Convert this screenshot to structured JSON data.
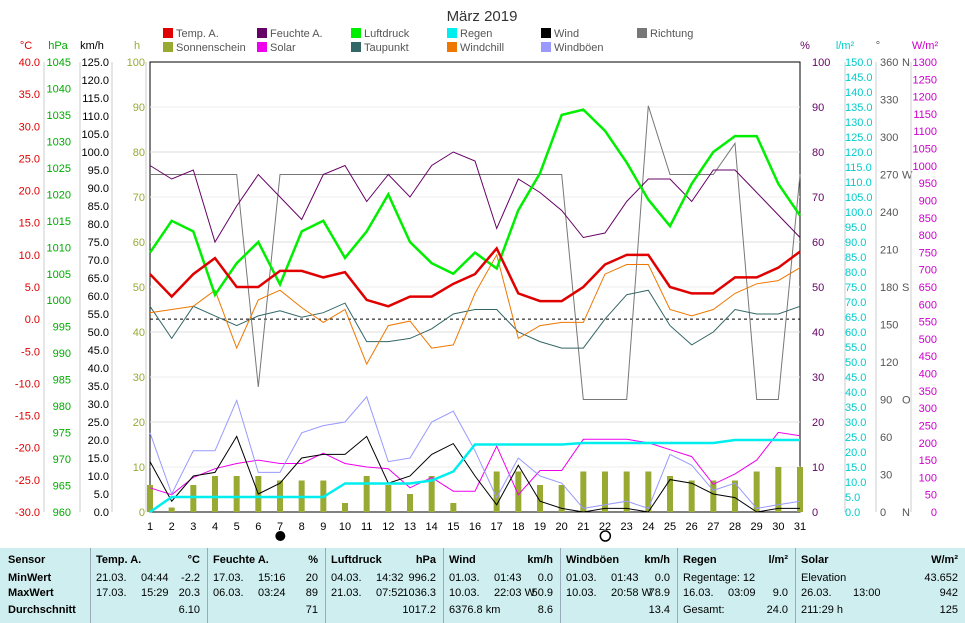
{
  "title": "März 2019",
  "legend": [
    {
      "label": "Temp. A.",
      "color": "#e00000"
    },
    {
      "label": "Feuchte A.",
      "color": "#660066"
    },
    {
      "label": "Luftdruck",
      "color": "#00ee00"
    },
    {
      "label": "Regen",
      "color": "#00eeee"
    },
    {
      "label": "Wind",
      "color": "#000000"
    },
    {
      "label": "Richtung",
      "color": "#777777"
    },
    {
      "label": "Sonnenschein",
      "color": "#99aa33"
    },
    {
      "label": "Solar",
      "color": "#ee00ee"
    },
    {
      "label": "Taupunkt",
      "color": "#336666"
    },
    {
      "label": "Windchill",
      "color": "#ee7700"
    },
    {
      "label": "Windböen",
      "color": "#9999ff"
    }
  ],
  "axes": {
    "temp": {
      "unit": "°C",
      "ticks": [
        "40.0",
        "35.0",
        "30.0",
        "25.0",
        "20.0",
        "15.0",
        "10.0",
        "5.0",
        "0.0",
        "-5.0",
        "-10.0",
        "-15.0",
        "-20.0",
        "-25.0",
        "-30.0"
      ],
      "color": "#e00000"
    },
    "press": {
      "unit": "hPa",
      "ticks": [
        "1045",
        "1040",
        "1035",
        "1030",
        "1025",
        "1020",
        "1015",
        "1010",
        "1005",
        "1000",
        "995",
        "990",
        "985",
        "980",
        "975",
        "970",
        "965",
        "960"
      ],
      "color": "#00aa00"
    },
    "wind": {
      "unit": "km/h",
      "ticks": [
        "125.0",
        "120.0",
        "115.0",
        "110.0",
        "105.0",
        "100.0",
        "95.0",
        "90.0",
        "85.0",
        "80.0",
        "75.0",
        "70.0",
        "65.0",
        "60.0",
        "55.0",
        "50.0",
        "45.0",
        "40.0",
        "35.0",
        "30.0",
        "25.0",
        "20.0",
        "15.0",
        "10.0",
        "5.0",
        "0.0"
      ],
      "color": "#000000"
    },
    "sun": {
      "unit": "h",
      "ticks": [
        "100",
        "90",
        "80",
        "70",
        "60",
        "50",
        "40",
        "30",
        "20",
        "10",
        "0"
      ],
      "color": "#99aa33"
    },
    "hum": {
      "unit": "%",
      "ticks": [
        "100",
        "90",
        "80",
        "70",
        "60",
        "50",
        "40",
        "30",
        "20",
        "10",
        "0"
      ],
      "color": "#660066"
    },
    "rain": {
      "unit": "l/m²",
      "ticks": [
        "150.0",
        "145.0",
        "140.0",
        "135.0",
        "130.0",
        "125.0",
        "120.0",
        "115.0",
        "110.0",
        "105.0",
        "100.0",
        "95.0",
        "90.0",
        "85.0",
        "80.0",
        "75.0",
        "70.0",
        "65.0",
        "60.0",
        "55.0",
        "50.0",
        "45.0",
        "40.0",
        "35.0",
        "30.0",
        "25.0",
        "20.0",
        "15.0",
        "10.0",
        "5.0",
        "0.0"
      ],
      "color": "#00cccc"
    },
    "dir": {
      "unit": "°",
      "ticks": [
        "360",
        "330",
        "300",
        "270",
        "240",
        "210",
        "180",
        "150",
        "120",
        "90",
        "60",
        "30",
        "0"
      ],
      "labels": {
        "360": "N",
        "270": "W",
        "180": "S",
        "90": "O",
        "0": "N"
      },
      "color": "#555555"
    },
    "solar": {
      "unit": "W/m²",
      "ticks": [
        "1300",
        "1250",
        "1200",
        "1150",
        "1100",
        "1050",
        "1000",
        "950",
        "900",
        "850",
        "800",
        "750",
        "700",
        "650",
        "600",
        "550",
        "500",
        "450",
        "400",
        "350",
        "300",
        "250",
        "200",
        "150",
        "100",
        "50",
        "0"
      ],
      "color": "#cc00cc"
    }
  },
  "chart_data": {
    "type": "line",
    "x": [
      1,
      2,
      3,
      4,
      5,
      6,
      7,
      8,
      9,
      10,
      11,
      12,
      13,
      14,
      15,
      16,
      17,
      18,
      19,
      20,
      21,
      22,
      23,
      24,
      25,
      26,
      27,
      28,
      29,
      30,
      31
    ],
    "ylim": {
      "temp": [
        -30,
        40
      ],
      "press": [
        960,
        1045
      ],
      "wind": [
        0,
        125
      ],
      "hum": [
        0,
        100
      ],
      "rain": [
        0,
        150
      ],
      "dir": [
        0,
        360
      ],
      "solar": [
        0,
        1300
      ],
      "sun": [
        0,
        100
      ]
    },
    "series": [
      {
        "name": "Temp. A.",
        "axis": "temp",
        "values": [
          7.0,
          3.5,
          7.0,
          9.5,
          5.0,
          5.0,
          7.5,
          7.5,
          6.5,
          7.3,
          3.0,
          2.0,
          3.5,
          3.5,
          5.5,
          7.0,
          11.0,
          4.0,
          2.8,
          2.8,
          5.0,
          8.5,
          10.0,
          10.0,
          5.0,
          4.0,
          4.0,
          6.5,
          6.5,
          8.0,
          10.5
        ]
      },
      {
        "name": "Feuchte A.",
        "axis": "hum",
        "values": [
          77,
          74,
          76,
          60,
          68,
          75,
          70,
          65,
          75,
          77,
          69,
          75,
          70,
          77,
          80,
          78,
          63,
          74,
          71,
          67,
          61,
          62,
          69,
          74,
          74,
          69,
          76,
          76,
          71,
          66,
          61
        ]
      },
      {
        "name": "Luftdruck",
        "axis": "press",
        "values": [
          1009,
          1015,
          1013,
          1001,
          1007,
          1011,
          1003,
          1013,
          1015,
          1008,
          1013,
          1020,
          1011,
          1007,
          1005,
          1009,
          1006,
          1017,
          1024,
          1035,
          1036,
          1032,
          1026,
          1019,
          1014,
          1022,
          1028,
          1031,
          1031,
          1022,
          1016
        ]
      },
      {
        "name": "Taupunkt",
        "axis": "temp",
        "values": [
          2.0,
          -3.0,
          2.0,
          0.5,
          -1.0,
          0.5,
          1.3,
          0.3,
          1.0,
          2.5,
          -3.5,
          -3.5,
          -3.0,
          -1.5,
          0.8,
          1.5,
          1.5,
          -2.0,
          -3.5,
          -4.5,
          -4.5,
          0.0,
          3.8,
          4.5,
          -1.0,
          -4.0,
          -2.0,
          1.5,
          0.8,
          0.8,
          2.0
        ]
      },
      {
        "name": "Windchill",
        "axis": "temp",
        "values": [
          1.0,
          1.5,
          2.0,
          4.5,
          -4.5,
          3.0,
          4.5,
          1.8,
          -0.5,
          1.5,
          -7.0,
          -1.0,
          -0.3,
          -4.5,
          -4.0,
          4.0,
          10.0,
          -3.0,
          -1.0,
          -0.5,
          -0.5,
          7.0,
          8.5,
          8.5,
          1.5,
          0.5,
          1.5,
          4.0,
          5.5,
          6.0,
          8.0
        ]
      },
      {
        "name": "Wind",
        "axis": "wind",
        "values": [
          14,
          3,
          10,
          11,
          21,
          5,
          8,
          15,
          16,
          16,
          21,
          8,
          10,
          16,
          19,
          10,
          2,
          13,
          3,
          1,
          0,
          1,
          1,
          0,
          9,
          8,
          5,
          4,
          0,
          1,
          1
        ]
      },
      {
        "name": "Windböen",
        "axis": "wind",
        "values": [
          22,
          5,
          17,
          17,
          31,
          11,
          11,
          22,
          24,
          25,
          32,
          14,
          15,
          25,
          28,
          17,
          4,
          15,
          10,
          8,
          1,
          2,
          3,
          1,
          16,
          13,
          6,
          8,
          1,
          2,
          3
        ]
      },
      {
        "name": "Richtung",
        "axis": "dir",
        "values": [
          270,
          270,
          270,
          270,
          270,
          100,
          270,
          270,
          270,
          270,
          270,
          270,
          270,
          270,
          270,
          270,
          270,
          270,
          270,
          270,
          90,
          90,
          90,
          325,
          270,
          270,
          270,
          295,
          90,
          90,
          270
        ]
      },
      {
        "name": "Solar",
        "axis": "solar",
        "values": [
          70,
          50,
          100,
          125,
          140,
          150,
          140,
          140,
          170,
          140,
          130,
          125,
          70,
          100,
          60,
          60,
          190,
          50,
          120,
          120,
          210,
          210,
          210,
          200,
          180,
          160,
          80,
          110,
          150,
          230,
          220
        ]
      },
      {
        "name": "Regen",
        "axis": "rain",
        "values": [
          0,
          5,
          5,
          5,
          5,
          5,
          5,
          5,
          5,
          9.5,
          9.5,
          9.5,
          9.5,
          10.5,
          13.5,
          22.5,
          22.5,
          22.5,
          22.5,
          22.5,
          23,
          23,
          23,
          23,
          23,
          23,
          23,
          24,
          24,
          24,
          24
        ]
      },
      {
        "name": "Sonnenschein",
        "axis": "sun",
        "values": [
          6,
          1,
          6,
          8,
          8,
          8,
          7,
          7,
          7,
          2,
          8,
          6,
          4,
          8,
          2,
          0,
          9,
          9,
          6,
          6,
          9,
          9,
          9,
          9,
          8,
          7,
          7,
          7,
          9,
          10,
          10
        ]
      }
    ]
  },
  "moon": {
    "newmoon": "6.",
    "fullmoon": "21."
  },
  "table": {
    "sensor_header": "Sensor",
    "row_labels": [
      "MinWert",
      "MaxWert",
      "Durchschnitt"
    ],
    "groups": [
      {
        "title": "Temp. A.",
        "unit": "°C",
        "rows": [
          [
            "21.03.",
            "04:44",
            "-2.2"
          ],
          [
            "17.03.",
            "15:29",
            "20.3"
          ],
          [
            "",
            "",
            "6.10"
          ]
        ]
      },
      {
        "title": "Feuchte A.",
        "unit": "%",
        "rows": [
          [
            "17.03.",
            "15:16",
            "20"
          ],
          [
            "06.03.",
            "03:24",
            "89"
          ],
          [
            "",
            "",
            "71"
          ]
        ]
      },
      {
        "title": "Luftdruck",
        "unit": "hPa",
        "rows": [
          [
            "04.03.",
            "14:32",
            "996.2"
          ],
          [
            "21.03.",
            "07:52",
            "1036.3"
          ],
          [
            "",
            "",
            "1017.2"
          ]
        ]
      },
      {
        "title": "Wind",
        "unit": "km/h",
        "rows": [
          [
            "01.03.",
            "01:43",
            "0.0"
          ],
          [
            "10.03.",
            "22:03 W",
            "50.9"
          ],
          [
            "6376.8 km",
            "",
            "8.6"
          ]
        ]
      },
      {
        "title": "Windböen",
        "unit": "km/h",
        "rows": [
          [
            "01.03.",
            "01:43",
            "0.0"
          ],
          [
            "10.03.",
            "20:58 W",
            "78.9"
          ],
          [
            "",
            "",
            "13.4"
          ]
        ]
      },
      {
        "title": "Regen",
        "unit": "l/m²",
        "rows": [
          [
            "Regentage: 12",
            "",
            ""
          ],
          [
            "16.03.",
            "03:09",
            "9.0"
          ],
          [
            "Gesamt:",
            "",
            "24.0"
          ]
        ]
      },
      {
        "title": "Solar",
        "unit": "W/m²",
        "rows": [
          [
            "Elevation",
            "",
            "43.652"
          ],
          [
            "26.03.",
            "13:00",
            "942"
          ],
          [
            "211:29 h",
            "",
            "125"
          ]
        ]
      }
    ]
  }
}
